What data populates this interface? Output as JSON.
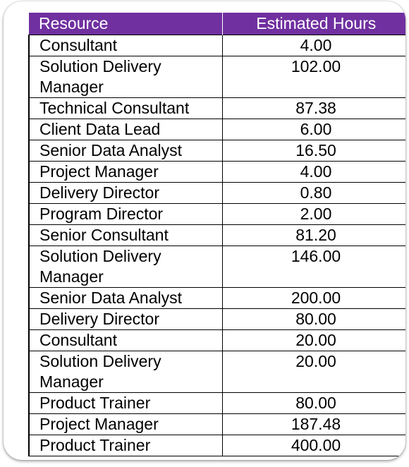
{
  "table": {
    "headers": [
      "Resource",
      "Estimated Hours"
    ],
    "rows": [
      [
        "Consultant",
        "4.00"
      ],
      [
        "Solution Delivery Manager",
        "102.00"
      ],
      [
        "Technical Consultant",
        "87.38"
      ],
      [
        "Client Data Lead",
        "6.00"
      ],
      [
        "Senior Data Analyst",
        "16.50"
      ],
      [
        "Project Manager",
        "4.00"
      ],
      [
        "Delivery Director",
        "0.80"
      ],
      [
        "Program Director",
        "2.00"
      ],
      [
        "Senior Consultant",
        "81.20"
      ],
      [
        "Solution Delivery Manager",
        "146.00"
      ],
      [
        "Senior Data Analyst",
        "200.00"
      ],
      [
        "Delivery Director",
        "80.00"
      ],
      [
        "Consultant",
        "20.00"
      ],
      [
        "Solution Delivery Manager",
        "20.00"
      ],
      [
        "Product Trainer",
        "80.00"
      ],
      [
        "Project Manager",
        "187.48"
      ],
      [
        "Product Trainer",
        "400.00"
      ]
    ]
  },
  "colors": {
    "header_bg": "#7030a0",
    "header_text": "#ffffff"
  }
}
